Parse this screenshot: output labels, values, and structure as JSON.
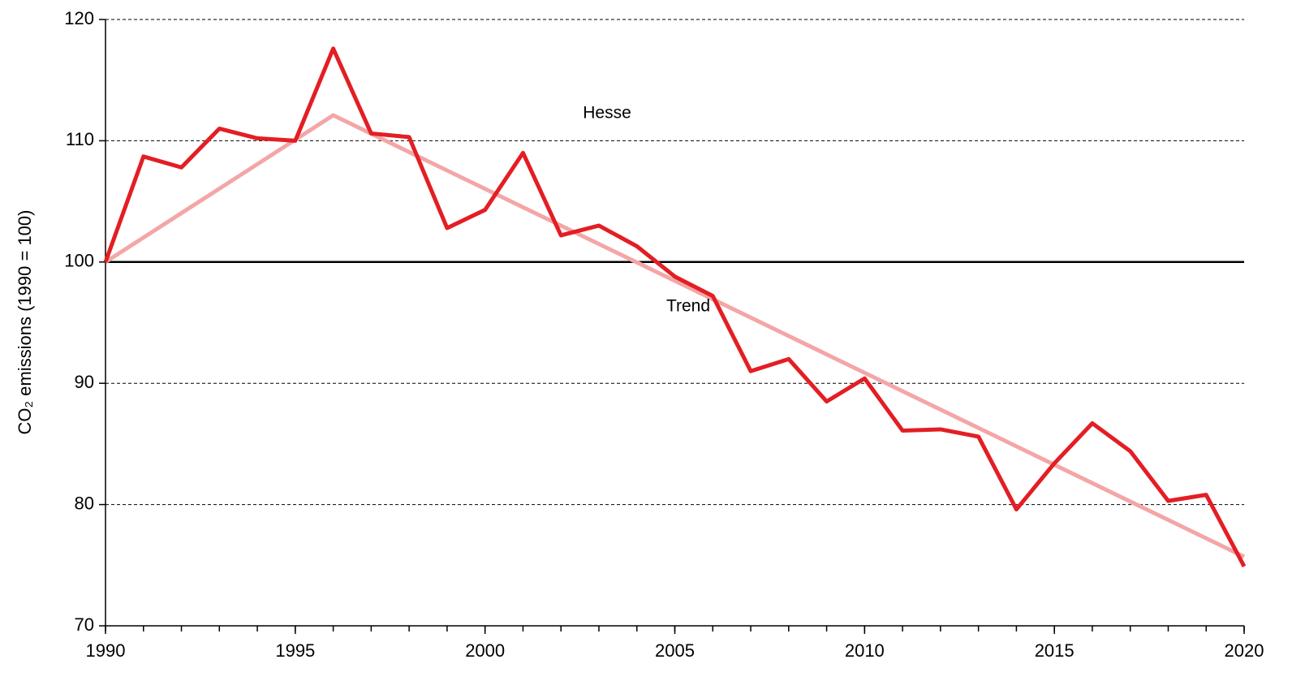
{
  "chart_data": {
    "type": "line",
    "y_label": "CO₂ emissions (1990 = 100)",
    "x": [
      1990,
      1991,
      1992,
      1993,
      1994,
      1995,
      1996,
      1997,
      1998,
      1999,
      2000,
      2001,
      2002,
      2003,
      2004,
      2005,
      2006,
      2007,
      2008,
      2009,
      2010,
      2011,
      2012,
      2013,
      2014,
      2015,
      2016,
      2017,
      2018,
      2019,
      2020
    ],
    "series": [
      {
        "name": "Hesse",
        "color": "#e31e24",
        "values": [
          100,
          108.7,
          107.8,
          111,
          110.2,
          110,
          117.6,
          110.6,
          110.3,
          102.8,
          104.3,
          109,
          102.2,
          103,
          101.3,
          98.8,
          97.2,
          91,
          92,
          88.5,
          90.4,
          86.1,
          86.2,
          85.6,
          79.6,
          83.4,
          86.7,
          84.4,
          80.3,
          80.8,
          74.9
        ]
      },
      {
        "name": "Trend",
        "color": "#f4a6a6",
        "x": [
          1990,
          1996,
          2020
        ],
        "values": [
          100,
          112.1,
          75.7
        ]
      }
    ],
    "reference_line": 100,
    "xlim": [
      1990,
      2020
    ],
    "xticks": [
      1990,
      1995,
      2000,
      2005,
      2010,
      2015,
      2020
    ],
    "ylim": [
      70,
      120
    ],
    "yticks": [
      70,
      80,
      90,
      100,
      110,
      120
    ],
    "grid": true
  }
}
